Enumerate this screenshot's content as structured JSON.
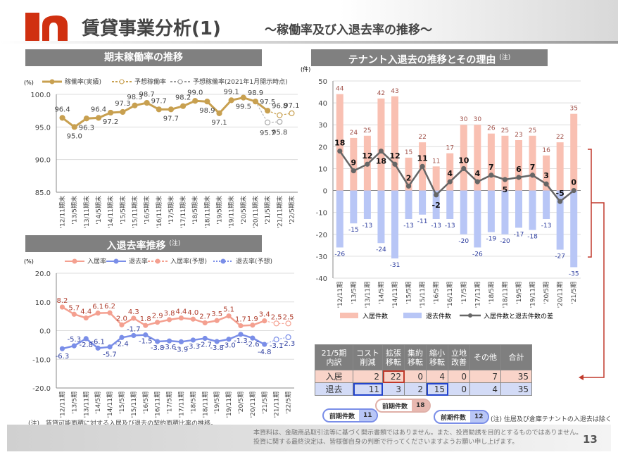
{
  "header": {
    "title": "賃貸事業分析(1)",
    "subtitle": "～稼働率及び入退去率の推移～"
  },
  "sections": {
    "occupancy": "期末稼働率の推移",
    "rates": "入退去率推移",
    "rates_note": "(注)",
    "tenants": "テナント入退去の推移とその理由",
    "tenants_note": "(注)"
  },
  "colors": {
    "gold": "#c8a050",
    "pink": "#f4a090",
    "blue": "#7a8ee8",
    "bar_in": "#f9c0b2",
    "bar_out": "#b8c6f6",
    "diff": "#666666",
    "accent": "#c0392b"
  },
  "chart_data": [
    {
      "type": "line",
      "unit": "(%)",
      "ylim": [
        85,
        100
      ],
      "yticks": [
        "100.0",
        "95.0",
        "90.0",
        "85.0"
      ],
      "categories": [
        "'12/11期末",
        "'13/5期末",
        "'13/11期末",
        "'14/5期末",
        "'14/11期末",
        "'15/5期末",
        "'15/11期末",
        "'16/5期末",
        "'16/11期末",
        "'17/5期末",
        "'17/11期末",
        "'18/5期末",
        "'18/11期末",
        "'19/5期末",
        "'19/11期末",
        "'20/5期末",
        "'20/11期末",
        "'21/5期末",
        "'21/11期末",
        "'22/5期末"
      ],
      "series": [
        {
          "name": "稼働率(実績)",
          "values": [
            96.4,
            95.0,
            96.3,
            96.4,
            97.2,
            97.3,
            98.3,
            98.7,
            97.7,
            97.7,
            98.2,
            99.0,
            98.9,
            97.1,
            99.1,
            99.5,
            98.9,
            97.5,
            null,
            null
          ]
        },
        {
          "name": "予想稼働率",
          "values": [
            null,
            null,
            null,
            null,
            null,
            null,
            null,
            null,
            null,
            null,
            null,
            null,
            null,
            null,
            null,
            null,
            null,
            97.5,
            96.8,
            97.1
          ]
        },
        {
          "name": "予想稼働率(2021年1月開示時点)",
          "values": [
            null,
            null,
            null,
            null,
            null,
            null,
            null,
            null,
            null,
            null,
            null,
            null,
            null,
            null,
            null,
            null,
            98.9,
            95.7,
            95.8,
            null
          ]
        }
      ]
    },
    {
      "type": "line",
      "unit": "(%)",
      "ylim": [
        -20,
        20
      ],
      "yticks": [
        "20.0",
        "10.0",
        "0.0",
        "-10.0",
        "-20.0"
      ],
      "categories": [
        "'12/11期",
        "'13/5期",
        "'13/11期",
        "'14/5期",
        "'14/11期",
        "'15/5期",
        "'15/11期",
        "'16/5期",
        "'16/11期",
        "'17/5期",
        "'17/11期",
        "'18/5期",
        "'18/11期",
        "'19/5期",
        "'19/11期",
        "'20/5期",
        "'20/11期",
        "'21/5期",
        "'21/11期",
        "'22/5期"
      ],
      "series": [
        {
          "name": "入居率",
          "values": [
            8.2,
            5.7,
            4.4,
            6.1,
            6.2,
            2.0,
            4.3,
            1.8,
            2.9,
            3.8,
            4.4,
            4.0,
            2.7,
            3.5,
            5.1,
            1.7,
            1.9,
            3.4,
            null,
            null
          ]
        },
        {
          "name": "退去率",
          "values": [
            -6.3,
            -5.3,
            -2.8,
            -6.1,
            -5.7,
            -2.4,
            -1.7,
            -1.5,
            -3.8,
            -3.6,
            -3.9,
            -3.3,
            -2.7,
            -3.8,
            -3.0,
            -1.3,
            -2.6,
            -4.8,
            null,
            null
          ]
        },
        {
          "name": "入居率(予想)",
          "values": [
            null,
            null,
            null,
            null,
            null,
            null,
            null,
            null,
            null,
            null,
            null,
            null,
            null,
            null,
            null,
            null,
            null,
            3.4,
            2.5,
            2.5
          ]
        },
        {
          "name": "退去率(予想)",
          "values": [
            null,
            null,
            null,
            null,
            null,
            null,
            null,
            null,
            null,
            null,
            null,
            null,
            null,
            null,
            null,
            null,
            null,
            -4.8,
            -3.1,
            -2.3
          ]
        }
      ],
      "note": "(注)　賃貸可能面積に対する入居及び退去の契約面積比率の推移。"
    },
    {
      "type": "bar",
      "unit": "(件)",
      "ylim": [
        -40,
        50
      ],
      "yticks": [
        "50",
        "40",
        "30",
        "20",
        "10",
        "0",
        "-10",
        "-20",
        "-30",
        "-40"
      ],
      "categories": [
        "'12/11期",
        "'13/5期",
        "'13/11期",
        "'14/5期",
        "'14/11期",
        "'15/5期",
        "'15/11期",
        "'16/5期",
        "'16/11期",
        "'17/5期",
        "'17/11期",
        "'18/5期",
        "'18/11期",
        "'19/5期",
        "'19/11期",
        "'20/5期",
        "'20/11期",
        "'21/5期"
      ],
      "series": [
        {
          "name": "入居件数",
          "values": [
            44,
            24,
            25,
            42,
            43,
            15,
            22,
            11,
            17,
            30,
            30,
            26,
            25,
            23,
            25,
            16,
            22,
            35
          ]
        },
        {
          "name": "退去件数",
          "values": [
            -26,
            -15,
            -13,
            -24,
            -31,
            -13,
            -11,
            -13,
            -13,
            -20,
            -26,
            -19,
            -20,
            -17,
            -18,
            -13,
            -27,
            -35
          ]
        },
        {
          "name": "入居件数と退去件数の差",
          "values": [
            18,
            9,
            12,
            18,
            12,
            2,
            11,
            -2,
            4,
            10,
            4,
            7,
            5,
            6,
            7,
            3,
            -5,
            0
          ]
        }
      ]
    }
  ],
  "table": {
    "corner": [
      "21/5期",
      "内訳"
    ],
    "headers": [
      [
        "コスト",
        "削減"
      ],
      [
        "拡張",
        "移転"
      ],
      [
        "集約",
        "移転"
      ],
      [
        "縮小",
        "移転"
      ],
      [
        "立地",
        "改善"
      ],
      [
        "その他"
      ],
      [
        "合計"
      ]
    ],
    "rows": [
      {
        "label": "入居",
        "values": [
          "2",
          "22",
          "0",
          "4",
          "0",
          "7",
          "35"
        ]
      },
      {
        "label": "退去",
        "values": [
          "11",
          "3",
          "2",
          "15",
          "0",
          "4",
          "35"
        ]
      }
    ]
  },
  "callouts": [
    {
      "label": "前期件数",
      "value": "11"
    },
    {
      "label": "前期件数",
      "value": "18"
    },
    {
      "label": "前期件数",
      "value": "12"
    }
  ],
  "tenant_note": "(注) 住居及び倉庫テナントの入退去は除く",
  "footer": {
    "line1": "本資料は、金融商品取引法等に基づく開示書類ではありません。また、投資勧誘を目的とするものではありません。",
    "line2": "投資に関する最終決定は、皆様御自身の判断で行ってくださいますようお願い申し上げます。",
    "page": "13"
  }
}
